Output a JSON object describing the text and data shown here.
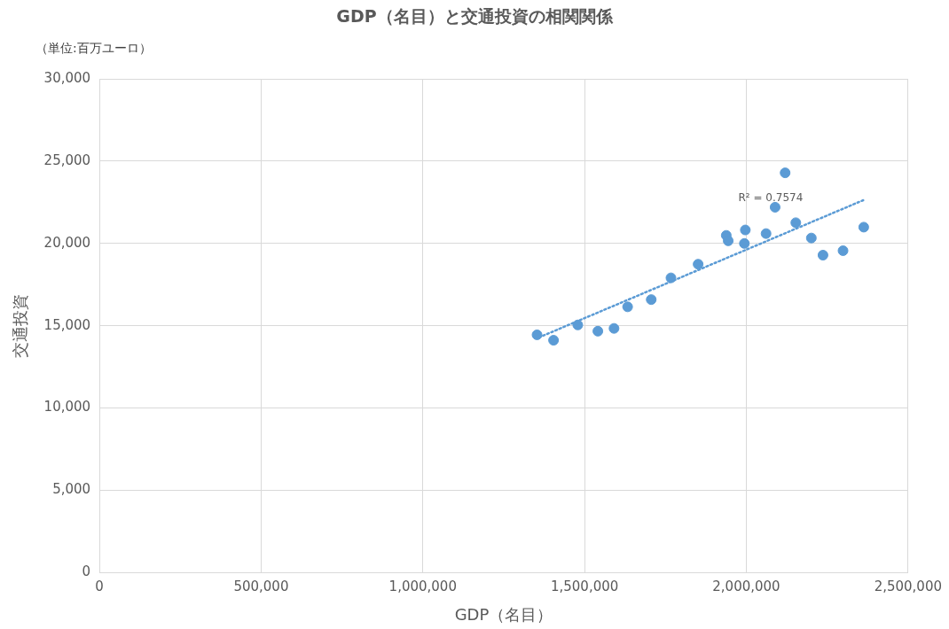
{
  "chart_data": {
    "type": "scatter",
    "title": "GDP（名目）と交通投資の相関関係",
    "xlabel": "GDP（名目）",
    "ylabel": "交通投資",
    "annotations": [
      "（単位:百万ユーロ）",
      "R² = 0.7574"
    ],
    "x": [
      1353000,
      1404000,
      1479000,
      1541000,
      1591000,
      1633000,
      1706000,
      1767000,
      1851000,
      1938000,
      1944000,
      1997000,
      1994000,
      2061000,
      2089000,
      2120000,
      2153000,
      2201000,
      2237000,
      2299000,
      2363000
    ],
    "series": [
      {
        "color": "#5b9bd5",
        "values": [
          14450,
          14120,
          15050,
          14670,
          14840,
          16150,
          16590,
          17910,
          18740,
          20490,
          20160,
          20820,
          20000,
          20600,
          22200,
          24290,
          21260,
          20330,
          19290,
          19560,
          20990
        ]
      },
      {
        "type": "line",
        "color": "#5b9bd5",
        "line_style": "dotted",
        "marker": "none",
        "x": [
          1359000,
          2363000
        ],
        "values": [
          14290,
          22640
        ]
      }
    ],
    "xlim": [
      0,
      2500000
    ],
    "xticks": [
      0,
      {
        "value": 500000,
        "label": "500,000"
      },
      {
        "value": 1000000,
        "label": "1,000,000"
      },
      {
        "value": 1500000,
        "label": "1,500,000"
      },
      {
        "value": 2000000,
        "label": "2,000,000"
      },
      {
        "value": 2500000,
        "label": "2,500,000"
      }
    ],
    "ylim": [
      0,
      30000
    ],
    "yticks": [
      0,
      {
        "value": 5000,
        "label": "5,000"
      },
      {
        "value": 10000,
        "label": "10,000"
      },
      {
        "value": 15000,
        "label": "15,000"
      },
      {
        "value": 20000,
        "label": "20,000"
      },
      {
        "value": 25000,
        "label": "25,000"
      },
      {
        "value": 30000,
        "label": "30,000"
      }
    ],
    "grid": true,
    "legend": false,
    "marker": "circle"
  }
}
